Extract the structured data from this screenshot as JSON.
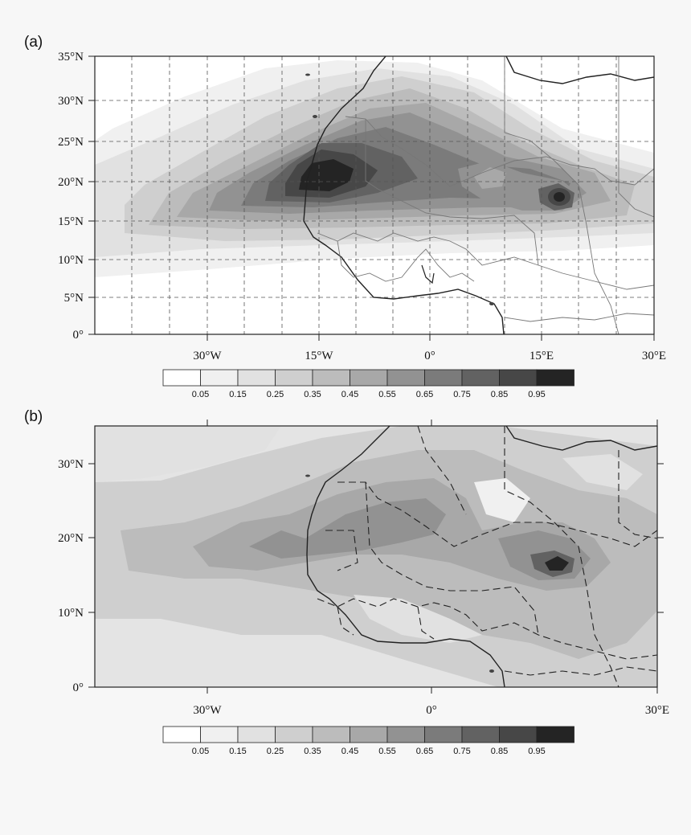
{
  "colors": {
    "levels": [
      "#ffffff",
      "#f0f0f0",
      "#e1e1e1",
      "#cfcfcf",
      "#bcbcbc",
      "#a8a8a8",
      "#929292",
      "#7b7b7b",
      "#626262",
      "#474747",
      "#242424"
    ],
    "background": "#f7f7f7",
    "line": "#222222"
  },
  "panels": [
    {
      "letter": "(a)",
      "lat_labels": [
        "35°N",
        "30°N",
        "25°N",
        "20°N",
        "15°N",
        "10°N",
        "5°N",
        "0°"
      ],
      "lon_labels": [
        "30°W",
        "15°W",
        "0°",
        "15°E",
        "30°E"
      ],
      "colorbar_labels": [
        "0.05",
        "0.15",
        "0.25",
        "0.35",
        "0.45",
        "0.55",
        "0.65",
        "0.75",
        "0.85",
        "0.95"
      ]
    },
    {
      "letter": "(b)",
      "lat_labels": [
        "30°N",
        "20°N",
        "10°N",
        "0°"
      ],
      "lon_labels": [
        "30°W",
        "0°",
        "30°E"
      ],
      "colorbar_labels": [
        "0.05",
        "0.15",
        "0.25",
        "0.35",
        "0.45",
        "0.55",
        "0.65",
        "0.75",
        "0.85",
        "0.95"
      ]
    }
  ]
}
